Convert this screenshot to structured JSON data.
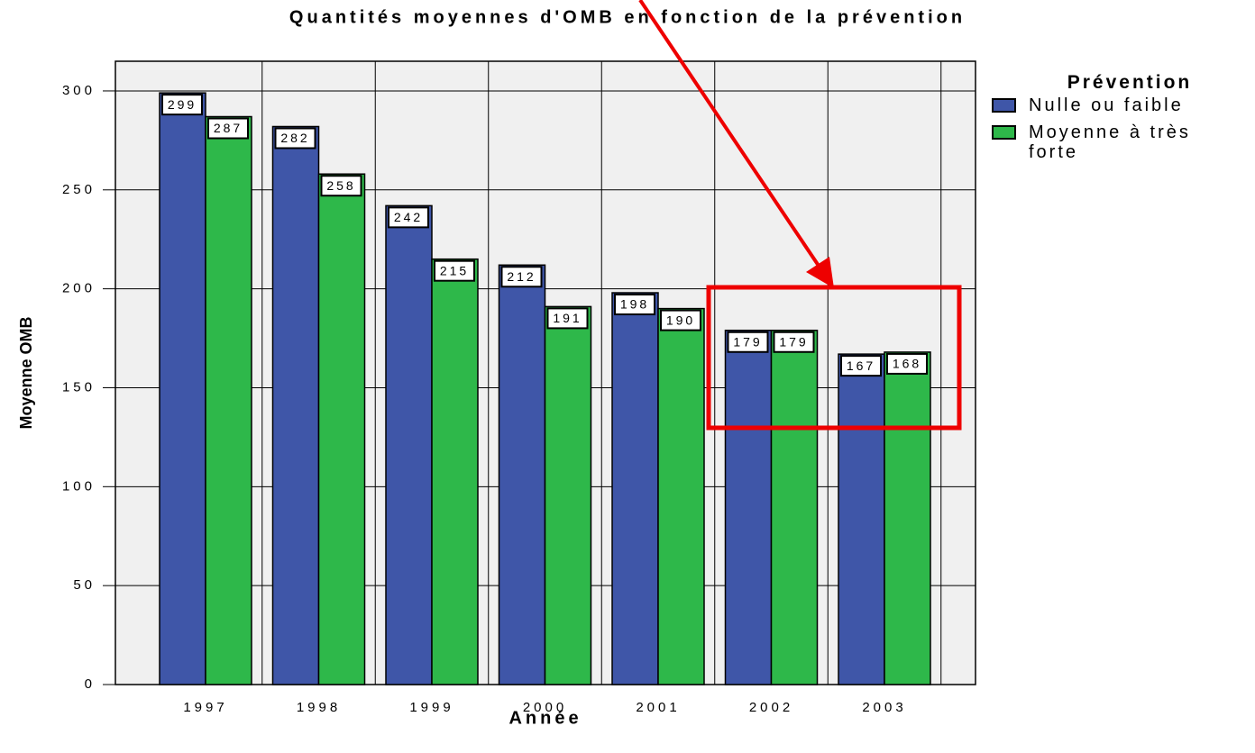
{
  "chart_data": {
    "type": "bar",
    "title": "Quantités moyennes d'OMB en fonction de la prévention",
    "x_label": "Année",
    "y_label": "Moyenne OMB",
    "legend_title": "Prévention",
    "categories": [
      "1997",
      "1998",
      "1999",
      "2000",
      "2001",
      "2002",
      "2003"
    ],
    "series": [
      {
        "name": "Nulle ou faible",
        "color": "#3f56a8",
        "values": [
          299,
          282,
          242,
          212,
          198,
          179,
          167
        ]
      },
      {
        "name": "Moyenne à très forte",
        "color": "#2eb84a",
        "values": [
          287,
          258,
          215,
          191,
          190,
          179,
          168
        ]
      }
    ],
    "ylim": [
      0,
      315
    ],
    "yticks": [
      0,
      50,
      100,
      150,
      200,
      250,
      300
    ],
    "grid": true,
    "legend": "right"
  }
}
